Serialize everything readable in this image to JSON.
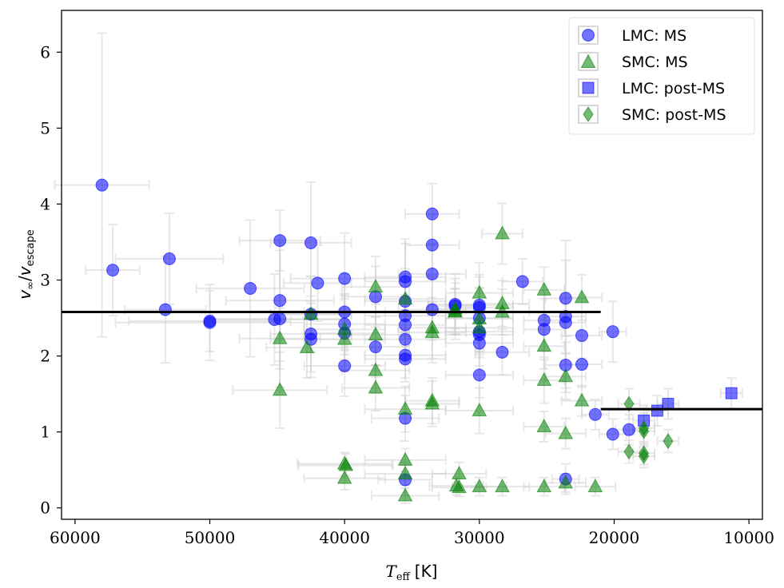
{
  "chart_data": {
    "type": "scatter",
    "xlabel_main": "T",
    "xlabel_sub": "eff",
    "xlabel_unit": "[K]",
    "ylabel_num": "v",
    "ylabel_num_sub": "∞",
    "ylabel_sep": "/",
    "ylabel_den": "v",
    "ylabel_den_sub": "escape",
    "xlim": [
      61000,
      9000
    ],
    "ylim": [
      -0.15,
      6.55
    ],
    "xticks": [
      60000,
      50000,
      40000,
      30000,
      20000,
      10000
    ],
    "xtick_labels": [
      "60000",
      "50000",
      "40000",
      "30000",
      "20000",
      "10000"
    ],
    "yticks": [
      0,
      1,
      2,
      3,
      4,
      5,
      6
    ],
    "ytick_labels": [
      "0",
      "1",
      "2",
      "3",
      "4",
      "5",
      "6"
    ],
    "colors": {
      "blue": "#0000ff",
      "green": "#008000",
      "errorbar": "#cccccc",
      "line": "#000000"
    },
    "legend_position": "top-right",
    "legend": [
      {
        "label": "LMC: MS",
        "marker": "circle",
        "color": "#0000ff"
      },
      {
        "label": "SMC: MS",
        "marker": "triangle",
        "color": "#008000"
      },
      {
        "label": "LMC: post-MS",
        "marker": "square",
        "color": "#0000ff"
      },
      {
        "label": "SMC: post-MS",
        "marker": "diamond",
        "color": "#008000"
      }
    ],
    "hlines": [
      {
        "x_start": 61000,
        "x_end": 21000,
        "y": 2.58
      },
      {
        "x_start": 21000,
        "x_end": 9000,
        "y": 1.3
      }
    ],
    "series": [
      {
        "name": "LMC: MS",
        "marker": "circle",
        "color": "#0000ff",
        "points": [
          [
            58000,
            4.25,
            3500,
            2.0
          ],
          [
            57200,
            3.13,
            2000,
            0.6
          ],
          [
            53300,
            2.61,
            3000,
            0.7
          ],
          [
            53000,
            3.28,
            4000,
            0.6
          ],
          [
            50000,
            2.44,
            7000,
            0.5
          ],
          [
            50000,
            2.46,
            6000,
            0.4
          ],
          [
            47000,
            2.89,
            4000,
            0.9
          ],
          [
            45200,
            2.48,
            5000,
            0.6
          ],
          [
            44800,
            2.49,
            5000,
            0.9
          ],
          [
            44800,
            2.73,
            4000,
            0.8
          ],
          [
            44800,
            3.52,
            3000,
            0.4
          ],
          [
            42500,
            3.49,
            3000,
            0.8
          ],
          [
            42500,
            2.29,
            3000,
            0.5
          ],
          [
            42500,
            2.22,
            3000,
            0.5
          ],
          [
            42500,
            2.55,
            3000,
            0.5
          ],
          [
            42000,
            2.96,
            2500,
            0.5
          ],
          [
            40000,
            3.02,
            4000,
            0.6
          ],
          [
            40000,
            2.58,
            3000,
            0.5
          ],
          [
            40000,
            2.42,
            3000,
            0.4
          ],
          [
            40000,
            2.3,
            3000,
            0.5
          ],
          [
            40000,
            1.87,
            3000,
            0.4
          ],
          [
            37700,
            2.78,
            2500,
            0.4
          ],
          [
            37700,
            2.12,
            2500,
            0.4
          ],
          [
            35500,
            3.04,
            3000,
            0.5
          ],
          [
            35500,
            2.98,
            3000,
            0.5
          ],
          [
            35500,
            2.72,
            3000,
            0.4
          ],
          [
            35500,
            2.53,
            3000,
            0.4
          ],
          [
            35500,
            2.41,
            3000,
            0.4
          ],
          [
            35500,
            2.22,
            3000,
            0.3
          ],
          [
            35500,
            2.01,
            3000,
            0.3
          ],
          [
            35500,
            1.96,
            3000,
            0.3
          ],
          [
            35500,
            1.18,
            2500,
            0.3
          ],
          [
            35500,
            0.37,
            2000,
            0.2
          ],
          [
            33500,
            3.87,
            2000,
            0.4
          ],
          [
            33500,
            3.46,
            2000,
            0.4
          ],
          [
            33500,
            3.08,
            2500,
            0.4
          ],
          [
            33500,
            2.61,
            2500,
            0.4
          ],
          [
            31800,
            2.68,
            2000,
            0.4
          ],
          [
            31800,
            2.66,
            2000,
            0.3
          ],
          [
            30000,
            2.67,
            2500,
            0.4
          ],
          [
            30000,
            2.64,
            2500,
            0.4
          ],
          [
            30000,
            2.5,
            2500,
            0.4
          ],
          [
            30000,
            2.32,
            2500,
            0.3
          ],
          [
            30000,
            2.28,
            2500,
            0.3
          ],
          [
            30000,
            2.17,
            2500,
            0.3
          ],
          [
            30000,
            1.75,
            2500,
            0.3
          ],
          [
            28300,
            2.05,
            2000,
            0.3
          ],
          [
            26800,
            2.98,
            1500,
            0.3
          ],
          [
            25200,
            2.47,
            1500,
            0.4
          ],
          [
            25200,
            2.35,
            1500,
            0.4
          ],
          [
            23600,
            2.76,
            1500,
            0.5
          ],
          [
            23600,
            2.52,
            1500,
            1.0
          ],
          [
            23600,
            2.44,
            1500,
            0.4
          ],
          [
            23600,
            1.88,
            1500,
            0.3
          ],
          [
            23600,
            0.38,
            1000,
            0.2
          ],
          [
            22400,
            2.27,
            1500,
            0.3
          ],
          [
            22400,
            1.89,
            1500,
            0.3
          ],
          [
            21400,
            1.23,
            1000,
            0.2
          ],
          [
            20100,
            2.32,
            1000,
            0.4
          ],
          [
            20100,
            0.97,
            1000,
            0.2
          ],
          [
            18900,
            1.03,
            1000,
            0.2
          ]
        ]
      },
      {
        "name": "SMC: MS",
        "marker": "triangle",
        "color": "#008000",
        "points": [
          [
            44800,
            2.23,
            3000,
            0.4
          ],
          [
            44800,
            1.55,
            3500,
            0.5
          ],
          [
            42800,
            2.11,
            3000,
            0.4
          ],
          [
            42500,
            2.55,
            3000,
            0.5
          ],
          [
            40000,
            2.35,
            3000,
            0.4
          ],
          [
            40000,
            2.22,
            3000,
            0.4
          ],
          [
            40000,
            0.58,
            3500,
            0.15
          ],
          [
            39900,
            0.56,
            3500,
            0.15
          ],
          [
            40000,
            0.39,
            3000,
            0.15
          ],
          [
            37700,
            2.91,
            2500,
            0.4
          ],
          [
            37700,
            2.28,
            2500,
            0.4
          ],
          [
            37700,
            1.81,
            2500,
            0.3
          ],
          [
            37700,
            1.58,
            2500,
            0.3
          ],
          [
            35500,
            2.75,
            3000,
            0.4
          ],
          [
            35500,
            1.3,
            3000,
            0.3
          ],
          [
            35500,
            0.63,
            3000,
            0.15
          ],
          [
            35500,
            0.45,
            3000,
            0.15
          ],
          [
            35500,
            0.16,
            2500,
            0.1
          ],
          [
            33500,
            2.37,
            2500,
            0.4
          ],
          [
            33500,
            2.31,
            2500,
            0.4
          ],
          [
            33500,
            1.41,
            2000,
            0.3
          ],
          [
            33500,
            1.37,
            2000,
            0.3
          ],
          [
            31800,
            2.62,
            2000,
            0.4
          ],
          [
            31800,
            2.59,
            2000,
            0.3
          ],
          [
            31500,
            0.45,
            2000,
            0.15
          ],
          [
            31700,
            0.29,
            2000,
            0.12
          ],
          [
            31500,
            0.27,
            2000,
            0.12
          ],
          [
            30000,
            2.83,
            2500,
            0.4
          ],
          [
            30000,
            2.49,
            2500,
            0.4
          ],
          [
            30000,
            2.37,
            2500,
            0.3
          ],
          [
            30000,
            1.28,
            2500,
            0.3
          ],
          [
            30000,
            0.28,
            2000,
            0.12
          ],
          [
            28300,
            3.61,
            1500,
            0.4
          ],
          [
            28300,
            2.69,
            2000,
            0.3
          ],
          [
            28300,
            2.58,
            2000,
            0.3
          ],
          [
            28300,
            0.28,
            2000,
            0.12
          ],
          [
            25200,
            2.87,
            1500,
            0.3
          ],
          [
            25200,
            2.13,
            1500,
            0.3
          ],
          [
            25200,
            1.68,
            1500,
            0.3
          ],
          [
            25200,
            1.07,
            1500,
            0.2
          ],
          [
            25200,
            0.28,
            1500,
            0.12
          ],
          [
            23600,
            1.73,
            1500,
            0.3
          ],
          [
            23600,
            0.98,
            1500,
            0.2
          ],
          [
            23600,
            0.33,
            1500,
            0.12
          ],
          [
            22400,
            2.77,
            1500,
            0.3
          ],
          [
            22400,
            1.41,
            1500,
            0.2
          ],
          [
            21400,
            0.28,
            1500,
            0.12
          ],
          [
            31800,
            2.58,
            2000,
            0.3
          ]
        ]
      },
      {
        "name": "LMC: post-MS",
        "marker": "square",
        "color": "#0000ff",
        "points": [
          [
            17800,
            1.15,
            800,
            0.2
          ],
          [
            16800,
            1.28,
            800,
            0.2
          ],
          [
            16000,
            1.37,
            800,
            0.2
          ],
          [
            11300,
            1.51,
            800,
            0.2
          ]
        ]
      },
      {
        "name": "SMC: post-MS",
        "marker": "diamond",
        "color": "#008000",
        "points": [
          [
            18900,
            1.37,
            800,
            0.2
          ],
          [
            18900,
            0.74,
            800,
            0.15
          ],
          [
            17800,
            1.05,
            800,
            0.2
          ],
          [
            17800,
            1.01,
            800,
            0.2
          ],
          [
            17800,
            0.72,
            800,
            0.15
          ],
          [
            17800,
            0.68,
            800,
            0.15
          ],
          [
            16000,
            0.88,
            800,
            0.15
          ]
        ]
      }
    ]
  }
}
